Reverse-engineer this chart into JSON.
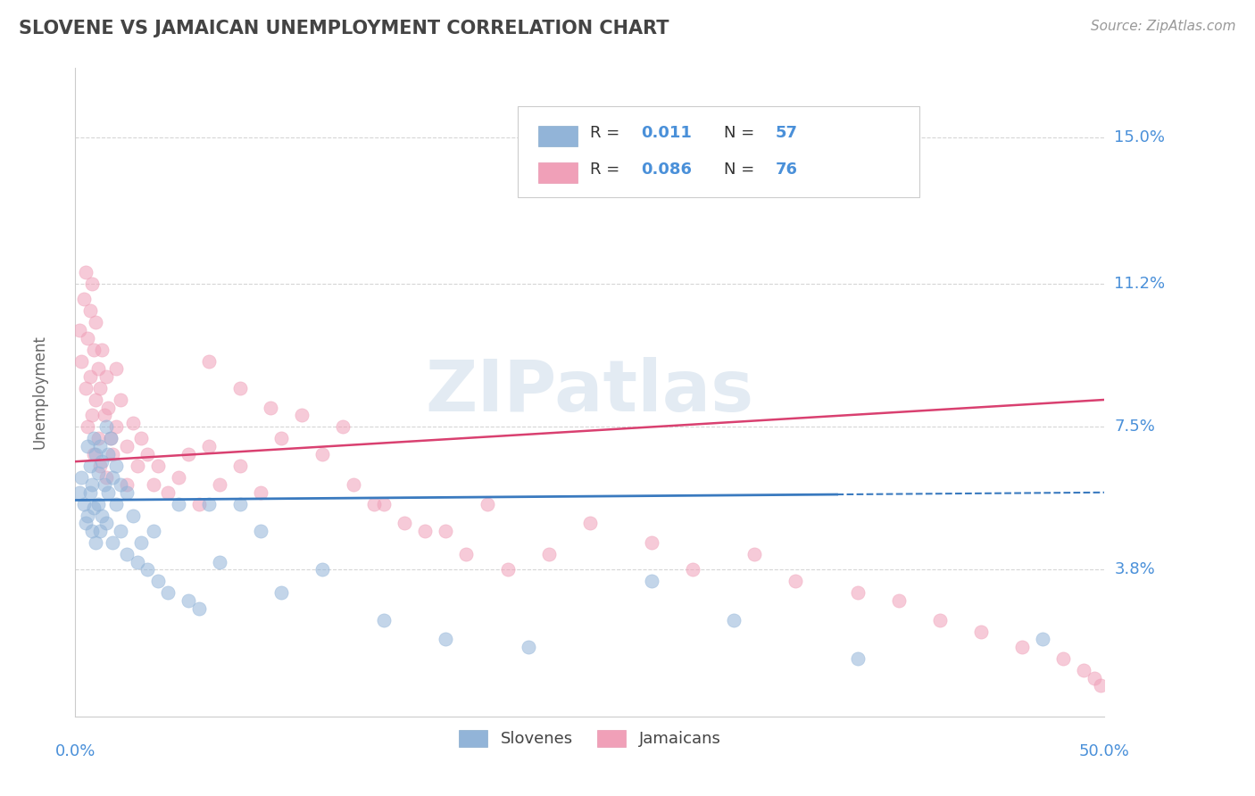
{
  "title": "SLOVENE VS JAMAICAN UNEMPLOYMENT CORRELATION CHART",
  "source": "Source: ZipAtlas.com",
  "ylabel": "Unemployment",
  "xlim": [
    0.0,
    0.5
  ],
  "ylim": [
    0.0,
    0.168
  ],
  "yticks": [
    0.038,
    0.075,
    0.112,
    0.15
  ],
  "ytick_labels": [
    "3.8%",
    "7.5%",
    "11.2%",
    "15.0%"
  ],
  "xtick_labels": [
    "0.0%",
    "50.0%"
  ],
  "legend_labels": [
    "Slovenes",
    "Jamaicans"
  ],
  "slovene_color": "#92b4d8",
  "jamaican_color": "#f0a0b8",
  "slovene_line_color": "#3a7abf",
  "jamaican_line_color": "#d94070",
  "R_slovene": "0.011",
  "N_slovene": "57",
  "R_jamaican": "0.086",
  "N_jamaican": "76",
  "background_color": "#ffffff",
  "grid_color": "#cccccc",
  "title_color": "#444444",
  "axis_label_color": "#666666",
  "tick_label_color": "#4a90d9",
  "watermark": "ZIPatlas",
  "slovene_line_y0": 0.056,
  "slovene_line_y1": 0.058,
  "slovene_line_x_solid_end": 0.37,
  "jamaican_line_y0": 0.066,
  "jamaican_line_y1": 0.082,
  "slovene_x": [
    0.002,
    0.003,
    0.004,
    0.005,
    0.006,
    0.006,
    0.007,
    0.007,
    0.008,
    0.008,
    0.009,
    0.009,
    0.01,
    0.01,
    0.011,
    0.011,
    0.012,
    0.012,
    0.013,
    0.013,
    0.014,
    0.015,
    0.015,
    0.016,
    0.016,
    0.017,
    0.018,
    0.018,
    0.02,
    0.02,
    0.022,
    0.022,
    0.025,
    0.025,
    0.028,
    0.03,
    0.032,
    0.035,
    0.038,
    0.04,
    0.045,
    0.05,
    0.055,
    0.06,
    0.065,
    0.07,
    0.08,
    0.09,
    0.1,
    0.12,
    0.15,
    0.18,
    0.22,
    0.28,
    0.32,
    0.38,
    0.47
  ],
  "slovene_y": [
    0.058,
    0.062,
    0.055,
    0.05,
    0.07,
    0.052,
    0.065,
    0.058,
    0.06,
    0.048,
    0.072,
    0.054,
    0.068,
    0.045,
    0.063,
    0.055,
    0.07,
    0.048,
    0.066,
    0.052,
    0.06,
    0.075,
    0.05,
    0.068,
    0.058,
    0.072,
    0.062,
    0.045,
    0.065,
    0.055,
    0.06,
    0.048,
    0.058,
    0.042,
    0.052,
    0.04,
    0.045,
    0.038,
    0.048,
    0.035,
    0.032,
    0.055,
    0.03,
    0.028,
    0.055,
    0.04,
    0.055,
    0.048,
    0.032,
    0.038,
    0.025,
    0.02,
    0.018,
    0.035,
    0.025,
    0.015,
    0.02
  ],
  "jamaican_x": [
    0.002,
    0.003,
    0.004,
    0.005,
    0.005,
    0.006,
    0.006,
    0.007,
    0.007,
    0.008,
    0.008,
    0.009,
    0.009,
    0.01,
    0.01,
    0.011,
    0.011,
    0.012,
    0.012,
    0.013,
    0.014,
    0.015,
    0.015,
    0.016,
    0.017,
    0.018,
    0.02,
    0.02,
    0.022,
    0.025,
    0.025,
    0.028,
    0.03,
    0.032,
    0.035,
    0.038,
    0.04,
    0.045,
    0.05,
    0.055,
    0.06,
    0.065,
    0.07,
    0.08,
    0.09,
    0.1,
    0.12,
    0.13,
    0.15,
    0.18,
    0.2,
    0.23,
    0.25,
    0.28,
    0.3,
    0.33,
    0.35,
    0.38,
    0.4,
    0.42,
    0.44,
    0.46,
    0.48,
    0.49,
    0.495,
    0.498,
    0.16,
    0.19,
    0.21,
    0.135,
    0.145,
    0.065,
    0.08,
    0.095,
    0.11,
    0.17
  ],
  "jamaican_y": [
    0.1,
    0.092,
    0.108,
    0.115,
    0.085,
    0.098,
    0.075,
    0.105,
    0.088,
    0.112,
    0.078,
    0.095,
    0.068,
    0.102,
    0.082,
    0.09,
    0.072,
    0.085,
    0.065,
    0.095,
    0.078,
    0.088,
    0.062,
    0.08,
    0.072,
    0.068,
    0.09,
    0.075,
    0.082,
    0.07,
    0.06,
    0.076,
    0.065,
    0.072,
    0.068,
    0.06,
    0.065,
    0.058,
    0.062,
    0.068,
    0.055,
    0.07,
    0.06,
    0.065,
    0.058,
    0.072,
    0.068,
    0.075,
    0.055,
    0.048,
    0.055,
    0.042,
    0.05,
    0.045,
    0.038,
    0.042,
    0.035,
    0.032,
    0.03,
    0.025,
    0.022,
    0.018,
    0.015,
    0.012,
    0.01,
    0.008,
    0.05,
    0.042,
    0.038,
    0.06,
    0.055,
    0.092,
    0.085,
    0.08,
    0.078,
    0.048
  ]
}
